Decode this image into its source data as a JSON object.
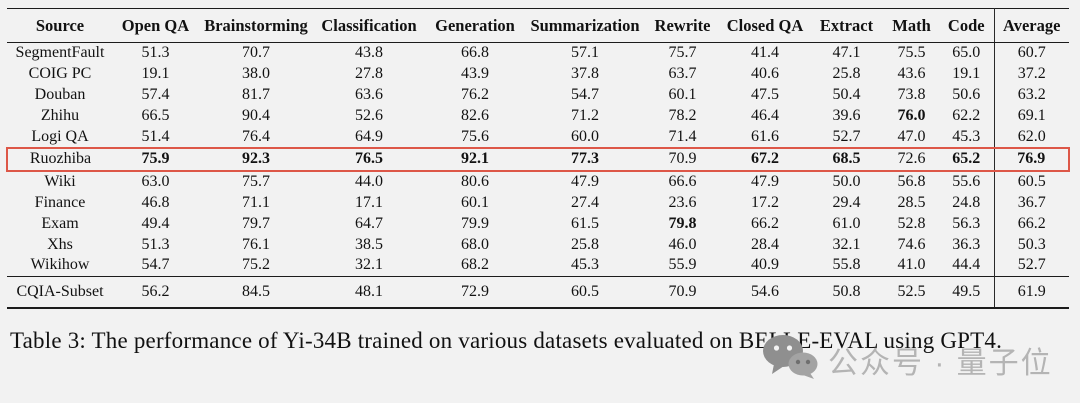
{
  "page": {
    "background": "#f2f2f2"
  },
  "table": {
    "columns": [
      "Source",
      "Open QA",
      "Brainstorming",
      "Classification",
      "Generation",
      "Summarization",
      "Rewrite",
      "Closed QA",
      "Extract",
      "Math",
      "Code",
      "Average"
    ],
    "divider_before_column": "Average",
    "highlight_color": "#dd5748",
    "rows": [
      {
        "source": "SegmentFault",
        "values": [
          "51.3",
          "70.7",
          "43.8",
          "66.8",
          "57.1",
          "75.7",
          "41.4",
          "47.1",
          "75.5",
          "65.0",
          "60.7"
        ],
        "bold": [],
        "highlighted": false,
        "separated": false
      },
      {
        "source": "COIG PC",
        "values": [
          "19.1",
          "38.0",
          "27.8",
          "43.9",
          "37.8",
          "63.7",
          "40.6",
          "25.8",
          "43.6",
          "19.1",
          "37.2"
        ],
        "bold": [],
        "highlighted": false,
        "separated": false
      },
      {
        "source": "Douban",
        "values": [
          "57.4",
          "81.7",
          "63.6",
          "76.2",
          "54.7",
          "60.1",
          "47.5",
          "50.4",
          "73.8",
          "50.6",
          "63.2"
        ],
        "bold": [],
        "highlighted": false,
        "separated": false
      },
      {
        "source": "Zhihu",
        "values": [
          "66.5",
          "90.4",
          "52.6",
          "82.6",
          "71.2",
          "78.2",
          "46.4",
          "39.6",
          "76.0",
          "62.2",
          "69.1"
        ],
        "bold": [
          8
        ],
        "highlighted": false,
        "separated": false
      },
      {
        "source": "Logi QA",
        "values": [
          "51.4",
          "76.4",
          "64.9",
          "75.6",
          "60.0",
          "71.4",
          "61.6",
          "52.7",
          "47.0",
          "45.3",
          "62.0"
        ],
        "bold": [],
        "highlighted": false,
        "separated": false
      },
      {
        "source": "Ruozhiba",
        "values": [
          "75.9",
          "92.3",
          "76.5",
          "92.1",
          "77.3",
          "70.9",
          "67.2",
          "68.5",
          "72.6",
          "65.2",
          "76.9"
        ],
        "bold": [
          0,
          1,
          2,
          3,
          4,
          6,
          7,
          9,
          10
        ],
        "highlighted": true,
        "separated": false
      },
      {
        "source": "Wiki",
        "values": [
          "63.0",
          "75.7",
          "44.0",
          "80.6",
          "47.9",
          "66.6",
          "47.9",
          "50.0",
          "56.8",
          "55.6",
          "60.5"
        ],
        "bold": [],
        "highlighted": false,
        "separated": false
      },
      {
        "source": "Finance",
        "values": [
          "46.8",
          "71.1",
          "17.1",
          "60.1",
          "27.4",
          "23.6",
          "17.2",
          "29.4",
          "28.5",
          "24.8",
          "36.7"
        ],
        "bold": [],
        "highlighted": false,
        "separated": false
      },
      {
        "source": "Exam",
        "values": [
          "49.4",
          "79.7",
          "64.7",
          "79.9",
          "61.5",
          "79.8",
          "66.2",
          "61.0",
          "52.8",
          "56.3",
          "66.2"
        ],
        "bold": [
          5
        ],
        "highlighted": false,
        "separated": false
      },
      {
        "source": "Xhs",
        "values": [
          "51.3",
          "76.1",
          "38.5",
          "68.0",
          "25.8",
          "46.0",
          "28.4",
          "32.1",
          "74.6",
          "36.3",
          "50.3"
        ],
        "bold": [],
        "highlighted": false,
        "separated": false
      },
      {
        "source": "Wikihow",
        "values": [
          "54.7",
          "75.2",
          "32.1",
          "68.2",
          "45.3",
          "55.9",
          "40.9",
          "55.8",
          "41.0",
          "44.4",
          "52.7"
        ],
        "bold": [],
        "highlighted": false,
        "separated": false
      },
      {
        "source": "CQIA-Subset",
        "values": [
          "56.2",
          "84.5",
          "48.1",
          "72.9",
          "60.5",
          "70.9",
          "54.6",
          "50.8",
          "52.5",
          "49.5",
          "61.9"
        ],
        "bold": [],
        "highlighted": false,
        "separated": true
      }
    ]
  },
  "caption": "Table 3: The performance of Yi-34B trained on various datasets evaluated on BELLE-EVAL using GPT4.",
  "watermark": {
    "icon": "wechat-icon",
    "text": "公众号 · 量子位",
    "text_color": "#b4b4b4",
    "icon_color": "#8f8f8f"
  }
}
